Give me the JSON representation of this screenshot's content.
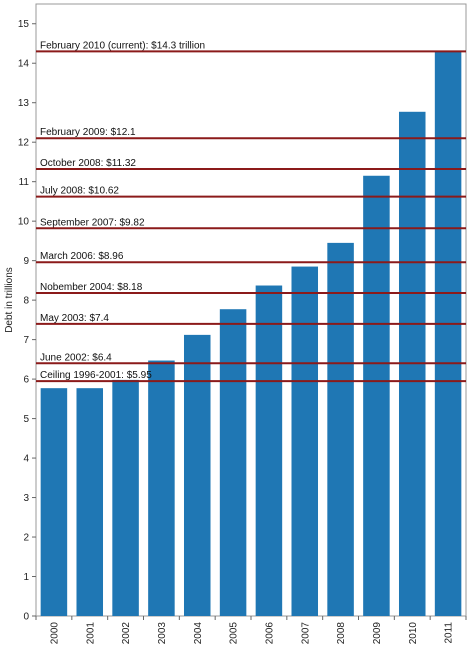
{
  "chart_data": {
    "type": "bar",
    "title": "",
    "xlabel": "",
    "ylabel": "Debt in trillions",
    "ylim": [
      0,
      15.5
    ],
    "yticks": [
      0,
      1,
      2,
      3,
      4,
      5,
      6,
      7,
      8,
      9,
      10,
      11,
      12,
      13,
      14,
      15
    ],
    "grid": false,
    "legend": "none",
    "categories": [
      "2000",
      "2001",
      "2002",
      "2003",
      "2004",
      "2005",
      "2006",
      "2007",
      "2008",
      "2009",
      "2010",
      "2011"
    ],
    "values": [
      5.77,
      5.77,
      5.98,
      6.47,
      7.12,
      7.77,
      8.37,
      8.85,
      9.45,
      11.15,
      12.77,
      14.3
    ],
    "bar_color": "#1f77b4",
    "reference_lines": [
      {
        "label": "February 2010 (current): $14.3 trillion",
        "value": 14.3
      },
      {
        "label": "February 2009: $12.1",
        "value": 12.1
      },
      {
        "label": "October 2008: $11.32",
        "value": 11.32
      },
      {
        "label": "July 2008: $10.62",
        "value": 10.62
      },
      {
        "label": "September 2007: $9.82",
        "value": 9.82
      },
      {
        "label": "March 2006: $8.96",
        "value": 8.96
      },
      {
        "label": "Nobember 2004: $8.18",
        "value": 8.18
      },
      {
        "label": "May 2003: $7.4",
        "value": 7.4
      },
      {
        "label": "June 2002: $6.4",
        "value": 6.4
      },
      {
        "label": "Ceiling 1996-2001: $5.95",
        "value": 5.95
      }
    ],
    "reference_line_color": "#8b1a1a"
  }
}
